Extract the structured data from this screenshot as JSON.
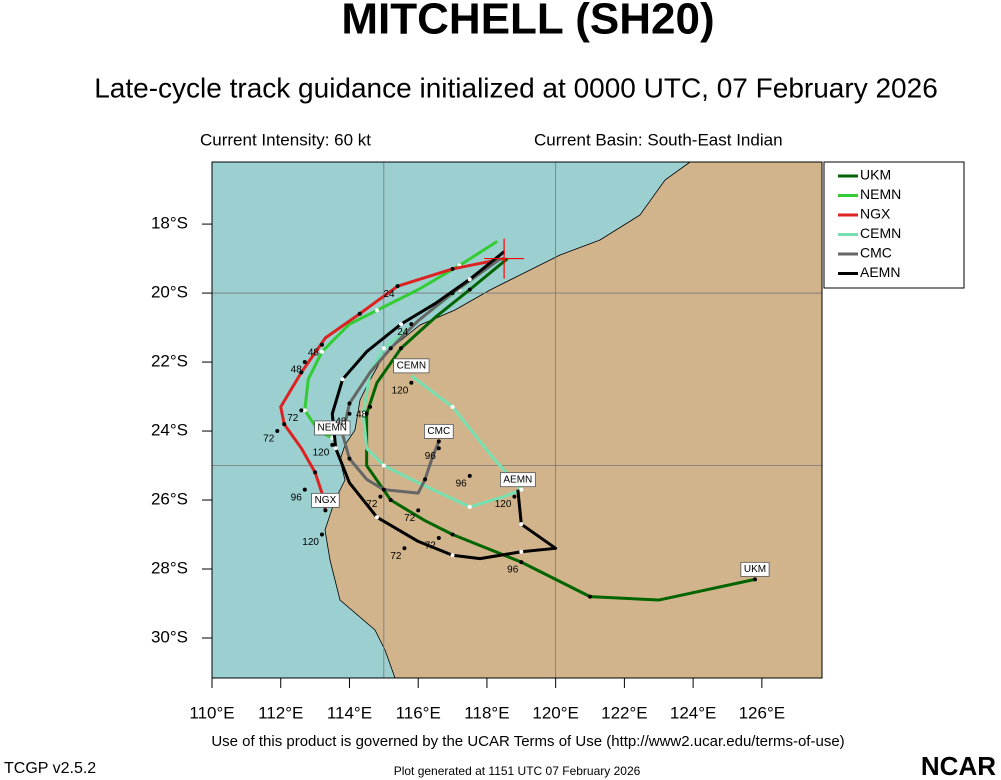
{
  "chart_data": {
    "type": "track",
    "title": "MITCHELL (SH20)",
    "subtitle": "Late-cycle track guidance initialized at 0000 UTC, 07 February 2026",
    "intensity": "Current Intensity: 60 kt",
    "basin": "Current Basin: South-East Indian",
    "xlim": [
      110,
      127.75
    ],
    "ylim": [
      -31.16,
      -16.2
    ],
    "xticks": [
      {
        "value": 110,
        "label": "110°E"
      },
      {
        "value": 112,
        "label": "112°E"
      },
      {
        "value": 114,
        "label": "114°E"
      },
      {
        "value": 116,
        "label": "116°E"
      },
      {
        "value": 118,
        "label": "118°E"
      },
      {
        "value": 120,
        "label": "120°E"
      },
      {
        "value": 122,
        "label": "122°E"
      },
      {
        "value": 124,
        "label": "124°E"
      },
      {
        "value": 126,
        "label": "126°E"
      }
    ],
    "yticks": [
      {
        "value": -18,
        "label": "18°S"
      },
      {
        "value": -20,
        "label": "20°S"
      },
      {
        "value": -22,
        "label": "22°S"
      },
      {
        "value": -24,
        "label": "24°S"
      },
      {
        "value": -26,
        "label": "26°S"
      },
      {
        "value": -28,
        "label": "28°S"
      },
      {
        "value": -30,
        "label": "30°S"
      }
    ],
    "grid_x": [
      115,
      120
    ],
    "grid_y": [
      -20,
      -25
    ],
    "current_position": {
      "x": 118.5,
      "y": -19.0,
      "color": "#ff0000"
    },
    "series": [
      {
        "name": "UKM",
        "color": "#006400",
        "x": [
          118.6,
          117.5,
          116.5,
          115.5,
          114.8,
          114.5,
          114.5,
          115.2,
          116.2,
          117.0,
          119.0,
          121.0,
          123.0,
          125.8
        ],
        "y": [
          -19.0,
          -19.9,
          -20.7,
          -21.6,
          -22.6,
          -23.5,
          -25.0,
          -26.0,
          -26.6,
          -27.0,
          -27.8,
          -28.8,
          -28.9,
          -28.3
        ]
      },
      {
        "name": "NEMN",
        "color": "#33cc33",
        "x": [
          118.3,
          117.2,
          116.0,
          114.8,
          114.0,
          113.2,
          112.8,
          112.7,
          113.1,
          113.5
        ],
        "y": [
          -18.5,
          -19.2,
          -19.9,
          -20.5,
          -20.9,
          -21.7,
          -22.5,
          -23.4,
          -24.0,
          -24.2
        ]
      },
      {
        "name": "NGX",
        "color": "#dd2222",
        "x": [
          118.5,
          117.0,
          115.4,
          114.3,
          113.3,
          112.6,
          112.0,
          112.1,
          112.6,
          113.0,
          113.2,
          113.3
        ],
        "y": [
          -19.0,
          -19.3,
          -19.8,
          -20.6,
          -21.3,
          -22.3,
          -23.3,
          -23.8,
          -24.5,
          -25.2,
          -25.8,
          -26.3
        ]
      },
      {
        "name": "CEMN",
        "color": "#77e0b0",
        "x": [
          118.4,
          117.2,
          116.0,
          115.0,
          114.6,
          114.4,
          114.5,
          115.0,
          116.0,
          117.5,
          118.5,
          119.0,
          118.2,
          117.0,
          115.8
        ],
        "y": [
          -19.0,
          -19.9,
          -20.8,
          -21.6,
          -22.3,
          -23.5,
          -24.5,
          -25.0,
          -25.5,
          -26.2,
          -25.9,
          -25.7,
          -24.8,
          -23.3,
          -22.4
        ]
      },
      {
        "name": "CMC",
        "color": "#666666",
        "x": [
          118.4,
          117.0,
          116.0,
          115.2,
          114.6,
          114.0,
          113.8,
          114.0,
          114.5,
          115.0,
          116.0,
          116.2,
          116.4,
          116.6
        ],
        "y": [
          -19.0,
          -20.0,
          -20.8,
          -21.6,
          -22.3,
          -23.2,
          -24.1,
          -24.8,
          -25.4,
          -25.7,
          -25.8,
          -25.4,
          -24.8,
          -24.3
        ]
      },
      {
        "name": "AEMN",
        "color": "#000000",
        "x": [
          118.5,
          117.5,
          116.5,
          115.5,
          114.5,
          113.8,
          113.5,
          113.6,
          114.0,
          114.8,
          116.0,
          117.0,
          117.8,
          119.0,
          120.0,
          119.0,
          118.9
        ],
        "y": [
          -18.8,
          -19.6,
          -20.3,
          -20.9,
          -21.7,
          -22.5,
          -23.5,
          -24.5,
          -25.5,
          -26.5,
          -27.2,
          -27.6,
          -27.7,
          -27.5,
          -27.4,
          -26.7,
          -25.7
        ]
      }
    ],
    "hour_labels": [
      {
        "text": "24",
        "x": 115.4,
        "y": -19.8
      },
      {
        "text": "24",
        "x": 115.8,
        "y": -20.9
      },
      {
        "text": "48",
        "x": 113.2,
        "y": -21.5
      },
      {
        "text": "48",
        "x": 112.7,
        "y": -22.0
      },
      {
        "text": "72",
        "x": 112.6,
        "y": -23.4
      },
      {
        "text": "72",
        "x": 111.9,
        "y": -24.0
      },
      {
        "text": "96",
        "x": 112.7,
        "y": -25.7
      },
      {
        "text": "120",
        "x": 113.2,
        "y": -27.0
      },
      {
        "text": "48",
        "x": 114.0,
        "y": -23.5
      },
      {
        "text": "48",
        "x": 114.6,
        "y": -23.3
      },
      {
        "text": "120",
        "x": 113.5,
        "y": -24.4
      },
      {
        "text": "72",
        "x": 114.9,
        "y": -25.9
      },
      {
        "text": "72",
        "x": 116.0,
        "y": -26.3
      },
      {
        "text": "72",
        "x": 116.6,
        "y": -27.1
      },
      {
        "text": "72",
        "x": 115.6,
        "y": -27.4
      },
      {
        "text": "96",
        "x": 116.6,
        "y": -24.5
      },
      {
        "text": "96",
        "x": 117.5,
        "y": -25.3
      },
      {
        "text": "96",
        "x": 119.0,
        "y": -27.8
      },
      {
        "text": "120",
        "x": 118.8,
        "y": -25.9
      },
      {
        "text": "120",
        "x": 115.8,
        "y": -22.6
      }
    ],
    "footer": "Use of this product is governed by the UCAR Terms of Use (http://www2.ucar.edu/terms-of-use)",
    "version": "TCGP v2.5.2",
    "generated": "Plot generated at 1151 UTC  07 February 2026",
    "logo": "NCAR"
  }
}
